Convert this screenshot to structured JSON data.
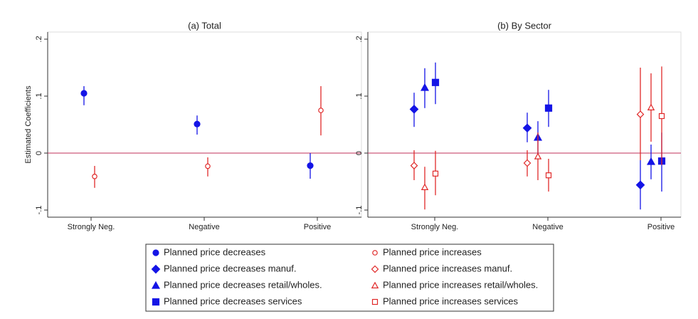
{
  "chart_data": [
    {
      "type": "errorbar",
      "title": "(a) Total",
      "ylabel": "Estimated Coefficients",
      "categories": [
        "Strongly Neg.",
        "Negative",
        "Positive"
      ],
      "ylim": [
        -0.1125,
        0.2125
      ],
      "yticks": [
        {
          "value": -0.1,
          "label": "-.1"
        },
        0,
        {
          "value": 0.1,
          "label": ".1"
        },
        {
          "value": 0.2,
          "label": ".2"
        }
      ],
      "reference_line": 0,
      "reference_color": "#c0305a",
      "series": [
        {
          "name": "Planned price decreases",
          "color": "#1414e6",
          "marker": "circle",
          "filled": true,
          "values": [
            0.105,
            0.051,
            -0.022
          ],
          "ci_low": [
            0.084,
            0.0325,
            -0.045
          ],
          "ci_high": [
            0.1175,
            0.066,
            0.0
          ]
        },
        {
          "name": "Planned price increases",
          "color": "#e02828",
          "marker": "circle",
          "filled": false,
          "values": [
            -0.041,
            -0.023,
            0.075
          ],
          "ci_low": [
            -0.061,
            -0.041,
            0.031
          ],
          "ci_high": [
            -0.0225,
            -0.0075,
            0.1175
          ]
        }
      ]
    },
    {
      "type": "errorbar",
      "title": "(b) By Sector",
      "categories": [
        "Strongly Neg.",
        "Negative",
        "Positive"
      ],
      "ylim": [
        -0.1125,
        0.2125
      ],
      "yticks": [
        {
          "value": -0.1,
          "label": "-.1"
        },
        0,
        {
          "value": 0.1,
          "label": ".1"
        },
        {
          "value": 0.2,
          "label": ".2"
        }
      ],
      "reference_line": 0,
      "reference_color": "#c0305a",
      "series": [
        {
          "name": "Planned price decreases manuf.",
          "color": "#1414e6",
          "marker": "diamond",
          "filled": true,
          "values": [
            0.077,
            0.044,
            -0.056
          ],
          "ci_low": [
            0.046,
            0.019,
            -0.099
          ],
          "ci_high": [
            0.106,
            0.071,
            -0.0125
          ]
        },
        {
          "name": "Planned price decreases retail/wholes.",
          "color": "#1414e6",
          "marker": "triangle",
          "filled": true,
          "values": [
            0.115,
            0.0275,
            -0.015
          ],
          "ci_low": [
            0.079,
            -0.001,
            -0.046
          ],
          "ci_high": [
            0.149,
            0.056,
            0.015
          ]
        },
        {
          "name": "Planned price decreases services",
          "color": "#1414e6",
          "marker": "square",
          "filled": true,
          "values": [
            0.124,
            0.079,
            -0.014
          ],
          "ci_low": [
            0.086,
            0.046,
            -0.0675
          ],
          "ci_high": [
            0.159,
            0.111,
            0.036
          ]
        },
        {
          "name": "Planned price increases manuf.",
          "color": "#e02828",
          "marker": "diamond",
          "filled": false,
          "values": [
            -0.022,
            -0.0175,
            0.068
          ],
          "ci_low": [
            -0.0475,
            -0.041,
            -0.0125
          ],
          "ci_high": [
            0.005,
            0.005,
            0.15
          ]
        },
        {
          "name": "Planned price increases retail/wholes.",
          "color": "#e02828",
          "marker": "triangle",
          "filled": false,
          "values": [
            -0.06,
            -0.006,
            0.08
          ],
          "ci_low": [
            -0.099,
            -0.0475,
            0.02
          ],
          "ci_high": [
            -0.024,
            0.036,
            0.14
          ]
        },
        {
          "name": "Planned price increases services",
          "color": "#e02828",
          "marker": "square",
          "filled": false,
          "values": [
            -0.036,
            -0.039,
            0.065
          ],
          "ci_low": [
            -0.074,
            -0.0675,
            -0.021
          ],
          "ci_high": [
            0.004,
            -0.01,
            0.152
          ]
        }
      ]
    }
  ]
}
